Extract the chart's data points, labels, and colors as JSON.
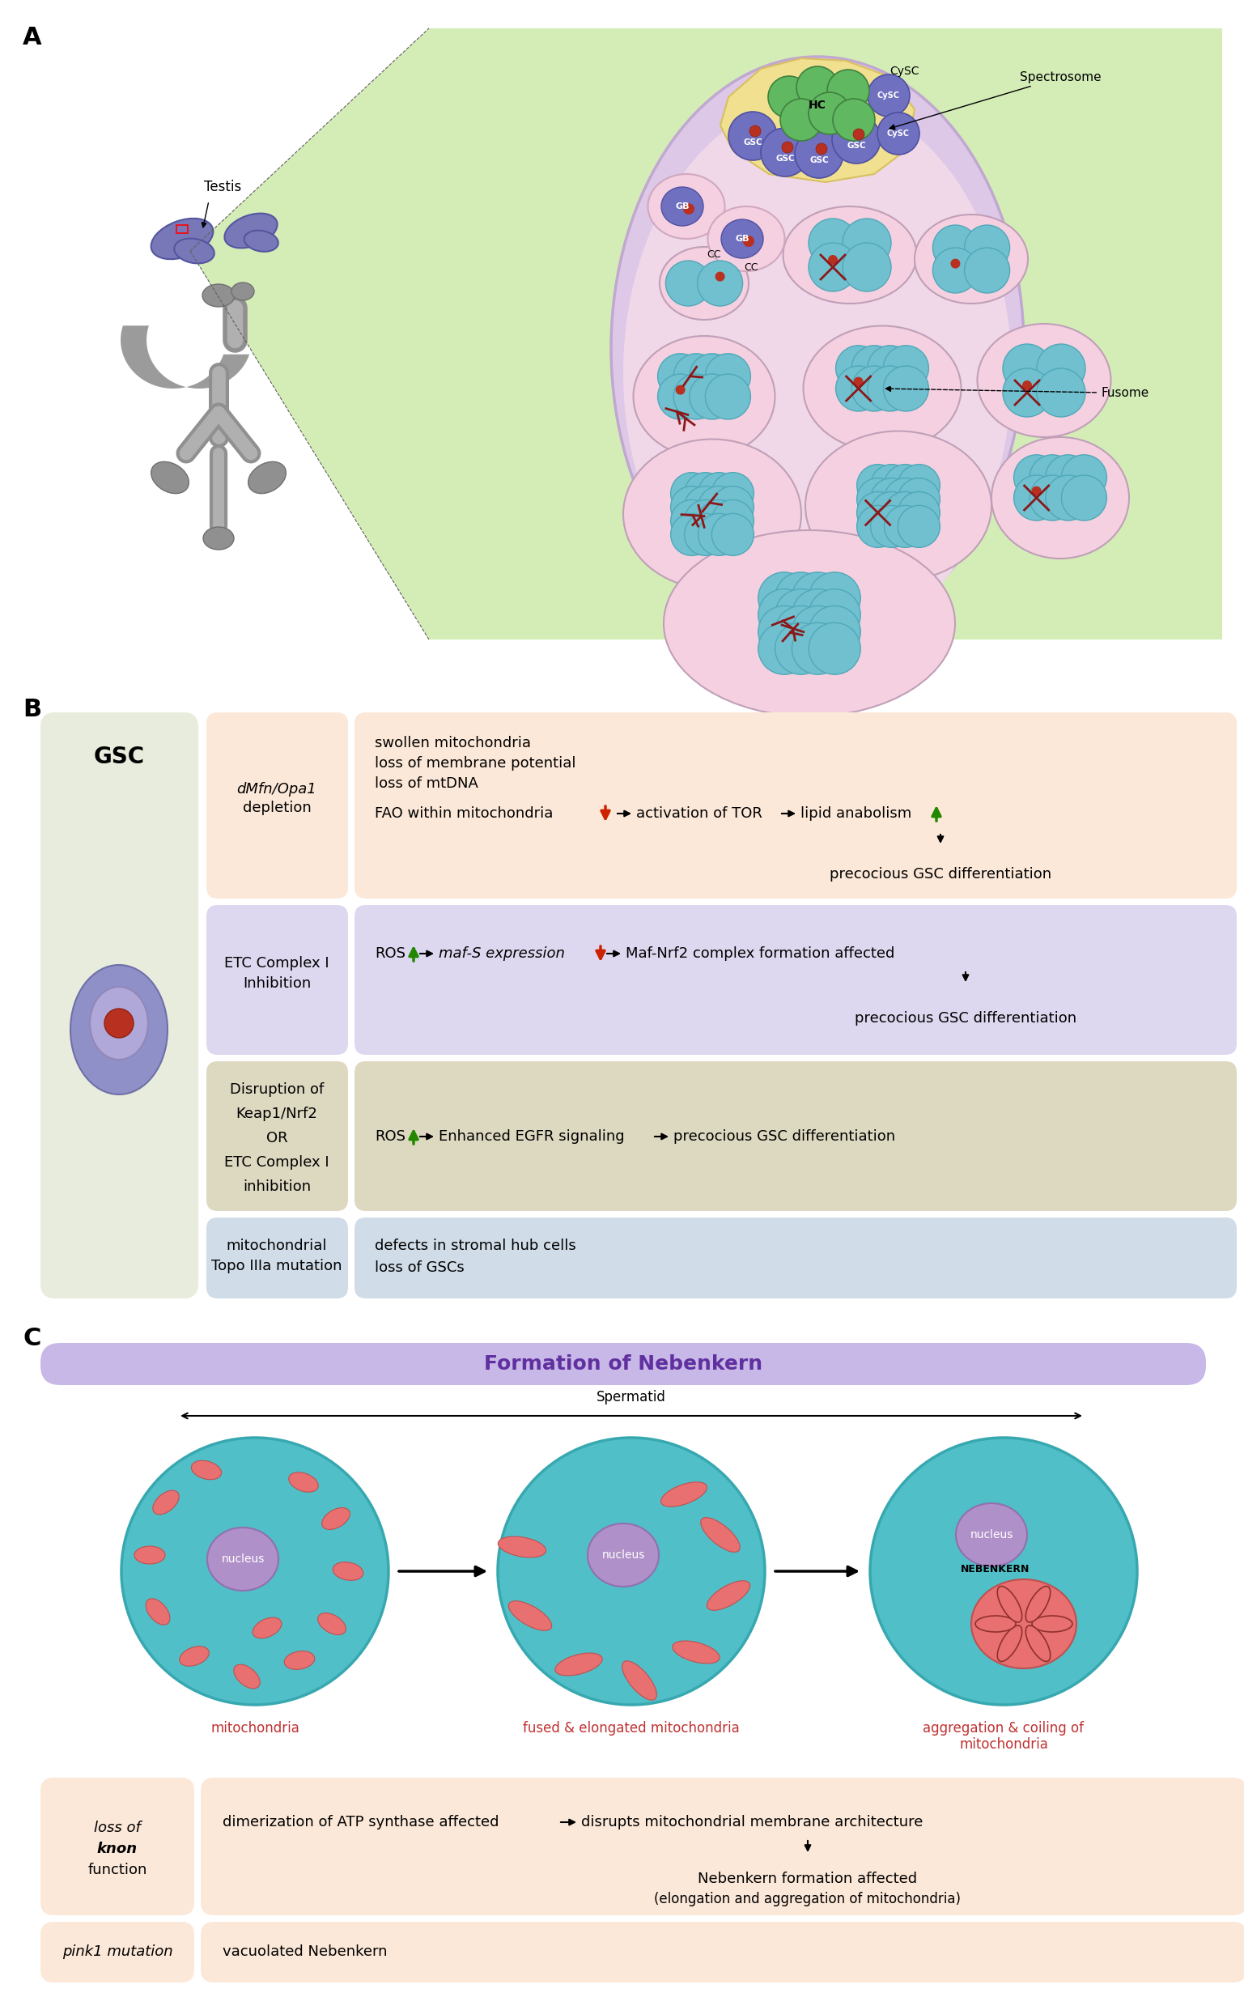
{
  "bg_color": "#ffffff",
  "panel_labels": [
    "A",
    "B",
    "C"
  ],
  "panel_A": {
    "testis_color": "#7878b8",
    "testis_edge": "#5555a0",
    "gray_body": "#888888",
    "gray_light": "#aaaaaa",
    "green_bg": "#d0ebb0",
    "oval_fill": "#d8c0e0",
    "oval_edge": "#b8a0c8",
    "niche_fill": "#f0e098",
    "niche_edge": "#d8c870",
    "hc_fill": "#60b860",
    "hc_edge": "#409040",
    "gsc_fill": "#7070c0",
    "gsc_edge": "#5050a0",
    "cysc_fill": "#7070c0",
    "cysc_edge": "#5050a0",
    "pink_cell": "#f5d0e0",
    "pink_edge": "#d8a0b8",
    "teal_cell": "#70c0d0",
    "teal_edge": "#50a8b8",
    "red_dot": "#b83020",
    "mito_color": "#8b2020",
    "fusome_color": "#8b2020"
  },
  "panel_B": {
    "gsc_box_color": "#e8ecdc",
    "gsc_cell_fill": "#9090c8",
    "gsc_cell_edge": "#7070a8",
    "gsc_nuc_fill": "#b0a8d8",
    "gsc_nuc_edge": "#9088b8",
    "gsc_dot": "#b83020",
    "r1_color": "#fce8d8",
    "r2_color": "#ddd8ef",
    "r3_color": "#ddd8c0",
    "r4_color": "#d0dce8",
    "arrow_color_black": "#000000",
    "arrow_color_red": "#cc2200",
    "arrow_color_green": "#228800"
  },
  "panel_C": {
    "header_color": "#c8b8e8",
    "header_text_color": "#6030a0",
    "circle_fill": "#50bfc8",
    "circle_edge": "#38a8b0",
    "nucleus_fill": "#b090c8",
    "nucleus_edge": "#9070b0",
    "mito_fill": "#e87070",
    "mito_edge": "#c05050",
    "nebenkern_fill": "#e87070",
    "r1_color": "#fce8d8",
    "r2_color": "#fce8d8"
  }
}
